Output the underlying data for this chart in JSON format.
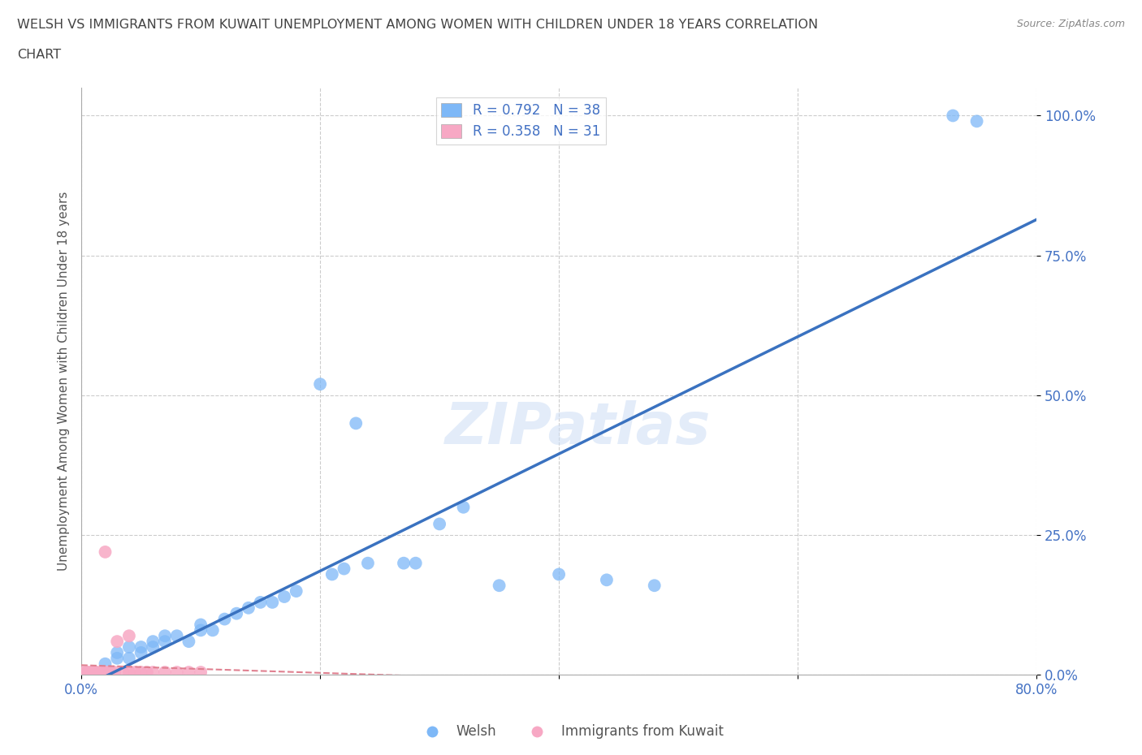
{
  "title_line1": "WELSH VS IMMIGRANTS FROM KUWAIT UNEMPLOYMENT AMONG WOMEN WITH CHILDREN UNDER 18 YEARS CORRELATION",
  "title_line2": "CHART",
  "source": "Source: ZipAtlas.com",
  "ylabel": "Unemployment Among Women with Children Under 18 years",
  "watermark": "ZIPatlas",
  "legend_welsh_R": 0.792,
  "legend_welsh_N": 38,
  "legend_kuwait_R": 0.358,
  "legend_kuwait_N": 31,
  "welsh_color": "#7eb8f7",
  "kuwait_color": "#f7a8c4",
  "welsh_line_color": "#3a72c0",
  "kuwait_line_color": "#e08090",
  "xlim": [
    0.0,
    0.8
  ],
  "ylim": [
    0.0,
    1.05
  ],
  "xticks": [
    0.0,
    0.2,
    0.4,
    0.6,
    0.8
  ],
  "xtick_labels": [
    "0.0%",
    "",
    "",
    "",
    "80.0%"
  ],
  "yticks": [
    0.0,
    0.25,
    0.5,
    0.75,
    1.0
  ],
  "ytick_labels": [
    "0.0%",
    "25.0%",
    "50.0%",
    "75.0%",
    "100.0%"
  ],
  "welsh_x": [
    0.02,
    0.03,
    0.03,
    0.04,
    0.04,
    0.05,
    0.05,
    0.06,
    0.06,
    0.07,
    0.07,
    0.08,
    0.09,
    0.1,
    0.1,
    0.11,
    0.12,
    0.13,
    0.14,
    0.15,
    0.16,
    0.17,
    0.18,
    0.2,
    0.21,
    0.22,
    0.23,
    0.24,
    0.27,
    0.28,
    0.3,
    0.32,
    0.35,
    0.4,
    0.44,
    0.48,
    0.73,
    0.75
  ],
  "welsh_y": [
    0.02,
    0.03,
    0.04,
    0.03,
    0.05,
    0.04,
    0.05,
    0.05,
    0.06,
    0.06,
    0.07,
    0.07,
    0.06,
    0.08,
    0.09,
    0.08,
    0.1,
    0.11,
    0.12,
    0.13,
    0.13,
    0.14,
    0.15,
    0.52,
    0.18,
    0.19,
    0.45,
    0.2,
    0.2,
    0.2,
    0.27,
    0.3,
    0.16,
    0.18,
    0.17,
    0.16,
    1.0,
    0.99
  ],
  "kuwait_x": [
    0.002,
    0.003,
    0.005,
    0.006,
    0.007,
    0.008,
    0.009,
    0.01,
    0.01,
    0.012,
    0.013,
    0.015,
    0.016,
    0.018,
    0.02,
    0.02,
    0.022,
    0.025,
    0.028,
    0.03,
    0.035,
    0.04,
    0.04,
    0.045,
    0.05,
    0.055,
    0.06,
    0.07,
    0.08,
    0.09,
    0.1
  ],
  "kuwait_y": [
    0.005,
    0.003,
    0.005,
    0.003,
    0.005,
    0.004,
    0.004,
    0.005,
    0.005,
    0.005,
    0.005,
    0.003,
    0.005,
    0.005,
    0.22,
    0.005,
    0.005,
    0.005,
    0.005,
    0.06,
    0.005,
    0.005,
    0.07,
    0.005,
    0.005,
    0.005,
    0.005,
    0.005,
    0.005,
    0.005,
    0.005
  ]
}
